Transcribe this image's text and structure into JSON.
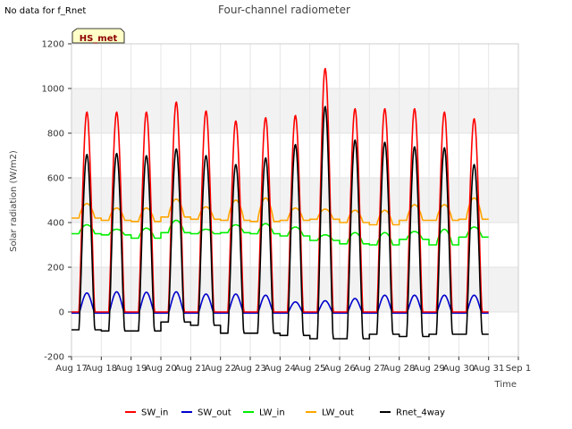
{
  "note": "No data for f_Rnet",
  "badge": "HS_met",
  "chart_data": {
    "type": "line",
    "title": "Four-channel radiometer",
    "xlabel": "Time",
    "ylabel": "Solar radiation (W/m2)",
    "ylim": [
      -200,
      1200
    ],
    "xlim": [
      17,
      32
    ],
    "yticks": [
      -200,
      0,
      200,
      400,
      600,
      800,
      1000,
      1200
    ],
    "xticks": [
      {
        "v": 17,
        "label": "Aug 17"
      },
      {
        "v": 18,
        "label": "Aug 18"
      },
      {
        "v": 19,
        "label": "Aug 19"
      },
      {
        "v": 20,
        "label": "Aug 20"
      },
      {
        "v": 21,
        "label": "Aug 21"
      },
      {
        "v": 22,
        "label": "Aug 22"
      },
      {
        "v": 23,
        "label": "Aug 23"
      },
      {
        "v": 24,
        "label": "Aug 24"
      },
      {
        "v": 25,
        "label": "Aug 25"
      },
      {
        "v": 26,
        "label": "Aug 26"
      },
      {
        "v": 27,
        "label": "Aug 27"
      },
      {
        "v": 28,
        "label": "Aug 28"
      },
      {
        "v": 29,
        "label": "Aug 29"
      },
      {
        "v": 30,
        "label": "Aug 30"
      },
      {
        "v": 31,
        "label": "Aug 31"
      },
      {
        "v": 32,
        "label": "Sep 1"
      }
    ],
    "grid": true,
    "legend_position": "bottom",
    "days": [
      17,
      18,
      19,
      20,
      21,
      22,
      23,
      24,
      25,
      26,
      27,
      28,
      29,
      30
    ],
    "series": [
      {
        "name": "SW_in",
        "color": "#ff0000",
        "daily_peak": [
          895,
          895,
          895,
          940,
          900,
          855,
          870,
          880,
          1090,
          910,
          910,
          910,
          895,
          865
        ],
        "night": 0
      },
      {
        "name": "SW_out",
        "color": "#0000cc",
        "daily_peak": [
          85,
          90,
          88,
          90,
          80,
          80,
          75,
          45,
          50,
          60,
          75,
          75,
          75,
          75
        ],
        "night": -5
      },
      {
        "name": "LW_in",
        "color": "#00ee00",
        "day": [
          390,
          370,
          375,
          410,
          370,
          390,
          395,
          380,
          345,
          355,
          355,
          360,
          370,
          380
        ],
        "night": [
          350,
          345,
          330,
          355,
          350,
          355,
          350,
          340,
          320,
          305,
          300,
          325,
          300,
          335
        ]
      },
      {
        "name": "LW_out",
        "color": "#ffa500",
        "day": [
          485,
          465,
          465,
          505,
          470,
          500,
          510,
          465,
          460,
          455,
          455,
          480,
          480,
          510
        ],
        "night": [
          420,
          410,
          405,
          425,
          415,
          410,
          405,
          410,
          415,
          400,
          390,
          410,
          410,
          415
        ]
      },
      {
        "name": "Rnet_4way",
        "color": "#000000",
        "daily_peak": [
          705,
          710,
          700,
          730,
          700,
          660,
          690,
          750,
          920,
          770,
          760,
          740,
          735,
          660
        ],
        "night": [
          -80,
          -85,
          -85,
          -45,
          -60,
          -95,
          -95,
          -105,
          -120,
          -120,
          -100,
          -110,
          -100,
          -100
        ]
      }
    ]
  }
}
